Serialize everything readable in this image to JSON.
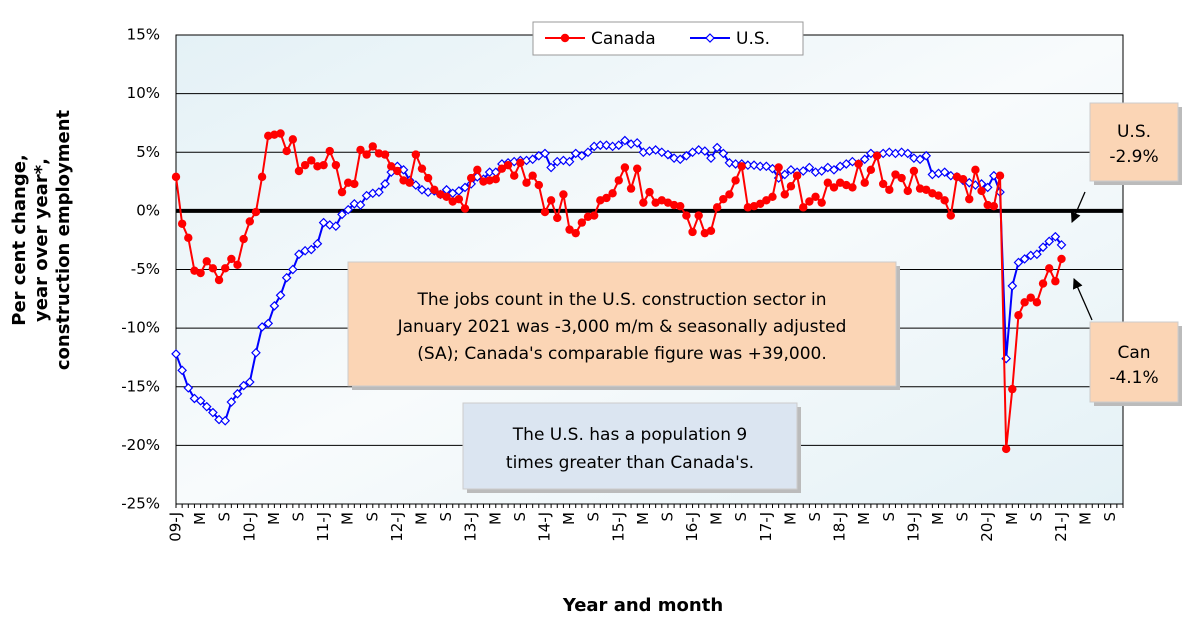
{
  "chart_data": {
    "type": "line",
    "xlabel": "Year and month",
    "ylabel": [
      "Per cent change,",
      "year over year*,",
      "construction employment"
    ],
    "categories": [
      "09-J",
      null,
      null,
      null,
      "M",
      null,
      null,
      null,
      "S",
      null,
      null,
      null,
      "10-J",
      null,
      null,
      null,
      "M",
      null,
      null,
      null,
      "S",
      null,
      null,
      null,
      "11-J",
      null,
      null,
      null,
      "M",
      null,
      null,
      null,
      "S",
      null,
      null,
      null,
      "12-J",
      null,
      null,
      null,
      "M",
      null,
      null,
      null,
      "S",
      null,
      null,
      null,
      "13-J",
      null,
      null,
      null,
      "M",
      null,
      null,
      null,
      "S",
      null,
      null,
      null,
      "14-J",
      null,
      null,
      null,
      "M",
      null,
      null,
      null,
      "S",
      null,
      null,
      null,
      "15-J",
      null,
      null,
      null,
      "M",
      null,
      null,
      null,
      "S",
      null,
      null,
      null,
      "16-J",
      null,
      null,
      null,
      "M",
      null,
      null,
      null,
      "S",
      null,
      null,
      null,
      "17-J",
      null,
      null,
      null,
      "M",
      null,
      null,
      null,
      "S",
      null,
      null,
      null,
      "18-J",
      null,
      null,
      null,
      "M",
      null,
      null,
      null,
      "S",
      null,
      null,
      null,
      "19-J",
      null,
      null,
      null,
      "M",
      null,
      null,
      null,
      "S",
      null,
      null,
      null,
      "20-J",
      null,
      null,
      null,
      "M",
      null,
      null,
      null,
      "S",
      null,
      null,
      null,
      "21-J",
      null,
      null,
      null,
      "M",
      null,
      null,
      null,
      "S",
      null,
      null
    ],
    "series": [
      {
        "name": "Canada",
        "color": "#ff0000",
        "marker": "circle",
        "values": [
          2.9,
          -1.1,
          -2.3,
          -5.1,
          -5.3,
          -4.3,
          -4.9,
          -5.9,
          -4.9,
          -4.1,
          -4.6,
          -2.4,
          -0.9,
          -0.1,
          2.9,
          6.4,
          6.5,
          6.6,
          5.1,
          6.1,
          3.4,
          3.9,
          4.3,
          3.8,
          3.9,
          5.1,
          3.9,
          1.6,
          2.4,
          2.3,
          5.2,
          4.8,
          5.5,
          4.9,
          4.8,
          3.8,
          3.4,
          2.6,
          2.4,
          4.8,
          3.6,
          2.8,
          1.8,
          1.4,
          1.2,
          0.8,
          1.0,
          0.2,
          2.8,
          3.5,
          2.5,
          2.6,
          2.7,
          3.6,
          3.9,
          3.0,
          4.1,
          2.4,
          3.0,
          2.2,
          -0.1,
          0.9,
          -0.6,
          1.4,
          -1.6,
          -1.9,
          -1.0,
          -0.5,
          -0.4,
          0.9,
          1.1,
          1.5,
          2.6,
          3.7,
          1.9,
          3.6,
          0.7,
          1.6,
          0.7,
          0.9,
          0.7,
          0.5,
          0.4,
          -0.4,
          -1.8,
          -0.4,
          -1.9,
          -1.7,
          0.3,
          1.0,
          1.4,
          2.6,
          3.8,
          0.3,
          0.4,
          0.6,
          0.9,
          1.2,
          3.7,
          1.4,
          2.1,
          3.0,
          0.3,
          0.8,
          1.2,
          0.7,
          2.4,
          2.0,
          2.4,
          2.2,
          2.0,
          4.0,
          2.4,
          3.5,
          4.7,
          2.3,
          1.8,
          3.1,
          2.8,
          1.7,
          3.4,
          1.9,
          1.8,
          1.5,
          1.3,
          0.9,
          -0.4,
          2.9,
          2.7,
          1.0,
          3.5,
          1.7,
          0.5,
          0.4,
          3.0,
          -20.3,
          -15.2,
          -8.9,
          -7.8,
          -7.4,
          -7.8,
          -6.2,
          -4.9,
          -6.0,
          -4.1,
          null,
          null,
          null,
          null,
          null,
          null,
          null,
          null,
          null,
          null
        ]
      },
      {
        "name": "U.S.",
        "color": "#0000ff",
        "marker": "diamond",
        "values": [
          -12.2,
          -13.6,
          -15.1,
          -16.0,
          -16.2,
          -16.7,
          -17.2,
          -17.8,
          -17.9,
          -16.3,
          -15.6,
          -14.9,
          -14.6,
          -12.1,
          -9.9,
          -9.6,
          -8.1,
          -7.2,
          -5.7,
          -5.0,
          -3.7,
          -3.4,
          -3.3,
          -2.8,
          -1.0,
          -1.2,
          -1.3,
          -0.3,
          0.1,
          0.6,
          0.5,
          1.3,
          1.5,
          1.6,
          2.3,
          3.3,
          3.8,
          3.5,
          2.6,
          2.2,
          1.8,
          1.6,
          1.7,
          1.4,
          1.8,
          1.5,
          1.7,
          2.0,
          2.3,
          2.9,
          2.7,
          3.3,
          3.3,
          4.0,
          4.1,
          4.2,
          4.3,
          4.3,
          4.4,
          4.7,
          4.9,
          3.7,
          4.2,
          4.3,
          4.2,
          4.9,
          4.7,
          5.0,
          5.5,
          5.6,
          5.6,
          5.5,
          5.6,
          6.0,
          5.7,
          5.8,
          5.0,
          5.1,
          5.2,
          5.0,
          4.8,
          4.5,
          4.4,
          4.7,
          5.0,
          5.2,
          5.1,
          4.5,
          5.4,
          4.9,
          4.1,
          4.0,
          4.0,
          3.9,
          3.9,
          3.8,
          3.8,
          3.6,
          2.8,
          3.1,
          3.5,
          3.3,
          3.4,
          3.7,
          3.3,
          3.4,
          3.7,
          3.5,
          3.8,
          4.0,
          4.2,
          4.0,
          4.4,
          4.9,
          4.7,
          4.9,
          5.0,
          4.9,
          5.0,
          4.9,
          4.5,
          4.4,
          4.7,
          3.1,
          3.2,
          3.3,
          3.0,
          2.9,
          2.6,
          2.4,
          2.2,
          2.3,
          2.0,
          3.0,
          1.6,
          -12.6,
          -6.4,
          -4.4,
          -4.1,
          -3.8,
          -3.7,
          -3.1,
          -2.6,
          -2.2,
          -2.9,
          null,
          null,
          null,
          null,
          null,
          null,
          null,
          null,
          null,
          null
        ]
      }
    ],
    "ylim": [
      -25,
      15
    ],
    "yticks": [
      {
        "value": -25,
        "label": "-25%"
      },
      {
        "value": -20,
        "label": "-20%"
      },
      {
        "value": -15,
        "label": "-15%"
      },
      {
        "value": -10,
        "label": "-10%"
      },
      {
        "value": -5,
        "label": "-5%"
      },
      {
        "value": 0,
        "label": "0%"
      },
      {
        "value": 5,
        "label": "5%"
      },
      {
        "value": 10,
        "label": "10%"
      },
      {
        "value": 15,
        "label": "15%"
      }
    ],
    "grid": true,
    "legend": "top",
    "annotations": [
      {
        "text": [
          "The jobs count in the U.S. construction sector in",
          "January 2021 was -3,000 m/m & seasonally adjusted",
          "(SA); Canada's comparable figure was +39,000."
        ]
      },
      {
        "text": [
          "The U.S. has a population 9",
          "times greater than Canada's."
        ]
      },
      {
        "text": [
          "U.S.",
          "-2.9%"
        ]
      },
      {
        "text": [
          "Can",
          "-4.1%"
        ]
      }
    ]
  }
}
